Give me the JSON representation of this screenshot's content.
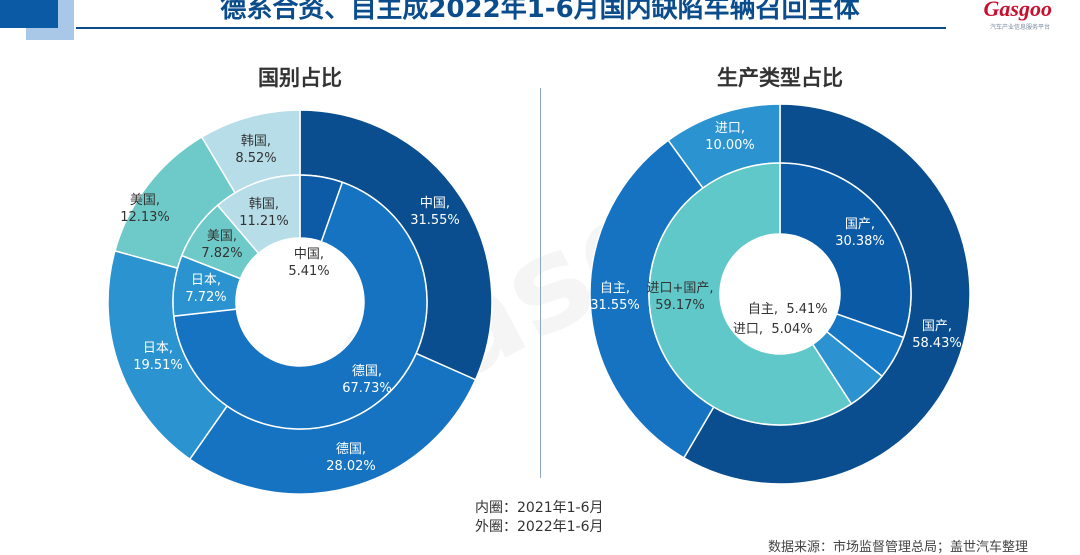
{
  "title": "德系合资、自主成2022年1-6月国内缺陷车辆召回主体",
  "logo": {
    "text": "Gasgoo",
    "subtitle": "汽车产业信息服务平台"
  },
  "chart_data": [
    {
      "type": "pie",
      "title": "国别占比",
      "rings": [
        {
          "name": "内圈：2021年1-6月",
          "slices": [
            {
              "label": "中国,",
              "value": 5.41,
              "text": "5.41%",
              "color": "#0d5aa6"
            },
            {
              "label": "德国,",
              "value": 67.73,
              "text": "67.73%",
              "color": "#1573c1"
            },
            {
              "label": "日本,",
              "value": 7.72,
              "text": "7.72%",
              "color": "#2b93cf"
            },
            {
              "label": "美国,",
              "value": 7.82,
              "text": "7.82%",
              "color": "#6ec9c9"
            },
            {
              "label": "韩国,",
              "value": 11.21,
              "text": "11.21%",
              "color": "#b7dde9"
            }
          ]
        },
        {
          "name": "外圈：2022年1-6月",
          "slices": [
            {
              "label": "中国,",
              "value": 31.55,
              "text": "31.55%",
              "color": "#0a4e8f"
            },
            {
              "label": "德国,",
              "value": 28.02,
              "text": "28.02%",
              "color": "#1573c1"
            },
            {
              "label": "日本,",
              "value": 19.51,
              "text": "19.51%",
              "color": "#2b93cf"
            },
            {
              "label": "美国,",
              "value": 12.13,
              "text": "12.13%",
              "color": "#6ec9c9"
            },
            {
              "label": "韩国,",
              "value": 8.52,
              "text": "8.52%",
              "color": "#b7dde9"
            }
          ]
        }
      ]
    },
    {
      "type": "pie",
      "title": "生产类型占比",
      "rings": [
        {
          "name": "内圈：2021年1-6月",
          "slices": [
            {
              "label": "国产,",
              "value": 30.38,
              "text": "30.38%",
              "color": "#0b5aa6"
            },
            {
              "label": "自主,",
              "value": 5.41,
              "text": "5.41%",
              "color": "#1677c4"
            },
            {
              "label": "进口,",
              "value": 5.04,
              "text": "5.04%",
              "color": "#2d93d0"
            },
            {
              "label": "进口+国产,",
              "value": 59.17,
              "text": "59.17%",
              "color": "#61c8c9"
            }
          ]
        },
        {
          "name": "外圈：2022年1-6月",
          "slices": [
            {
              "label": "国产,",
              "value": 58.43,
              "text": "58.43%",
              "color": "#0a4e8f"
            },
            {
              "label": "自主,",
              "value": 31.55,
              "text": "31.55%",
              "color": "#1573c1"
            },
            {
              "label": "进口,",
              "value": 10.0,
              "text": "10.00%",
              "color": "#2b93cf"
            }
          ]
        }
      ]
    }
  ],
  "legend": {
    "inner": "内圈：2021年1-6月",
    "outer": "外圈：2022年1-6月"
  },
  "source": "数据来源：市场监督管理总局；盖世汽车整理"
}
